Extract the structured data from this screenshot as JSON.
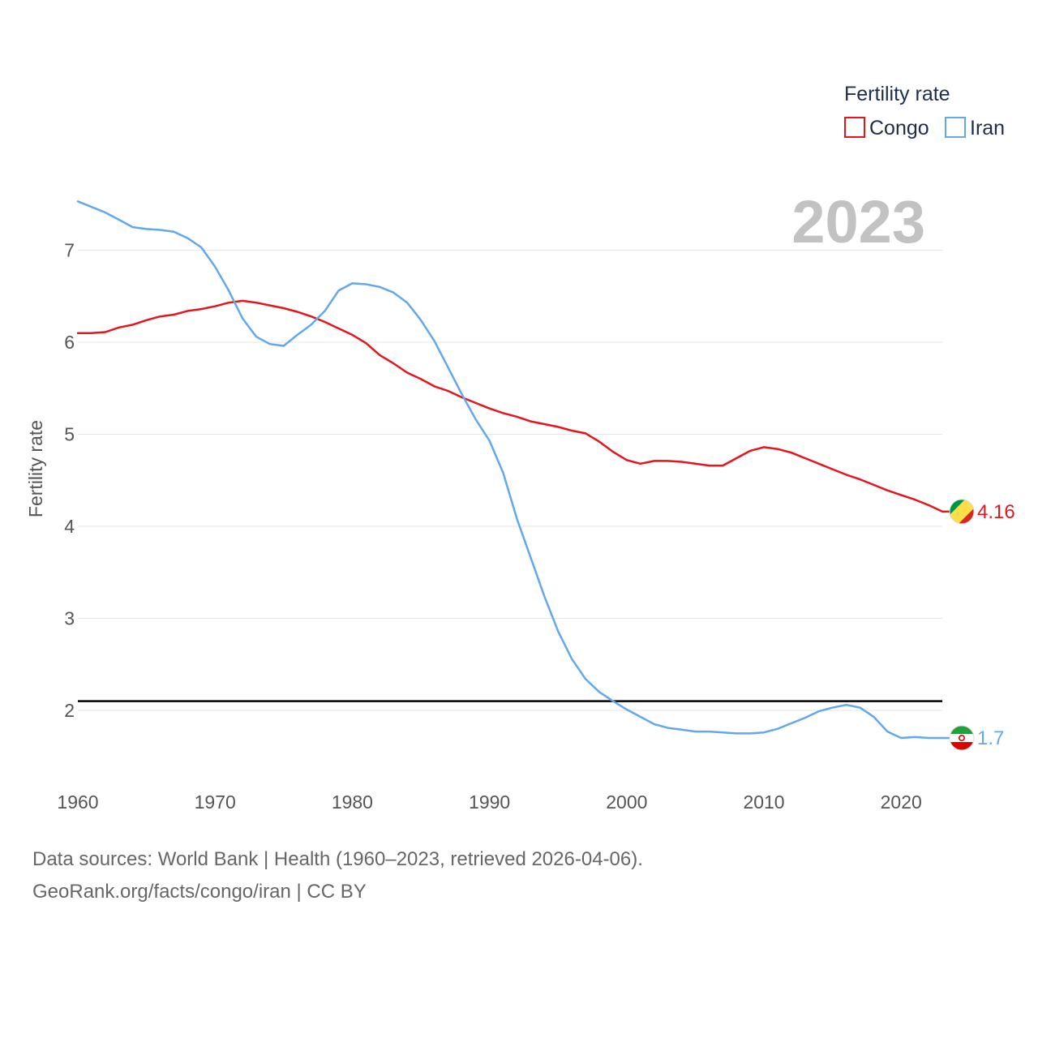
{
  "chart_data": {
    "type": "line",
    "title": "2023",
    "xlabel": "",
    "ylabel": "Fertility rate",
    "xlim": [
      1960,
      2023
    ],
    "ylim": [
      1.2,
      7.8
    ],
    "x_ticks": [
      1960,
      1970,
      1980,
      1990,
      2000,
      2010,
      2020
    ],
    "y_ticks": [
      2,
      3,
      4,
      5,
      6,
      7
    ],
    "grid": true,
    "legend": {
      "title": "Fertility rate",
      "placement": "top-right"
    },
    "reference_line": {
      "y": 2.1,
      "color": "#000000"
    },
    "x": [
      1960,
      1961,
      1962,
      1963,
      1964,
      1965,
      1966,
      1967,
      1968,
      1969,
      1970,
      1971,
      1972,
      1973,
      1974,
      1975,
      1976,
      1977,
      1978,
      1979,
      1980,
      1981,
      1982,
      1983,
      1984,
      1985,
      1986,
      1987,
      1988,
      1989,
      1990,
      1991,
      1992,
      1993,
      1994,
      1995,
      1996,
      1997,
      1998,
      1999,
      2000,
      2001,
      2002,
      2003,
      2004,
      2005,
      2006,
      2007,
      2008,
      2009,
      2010,
      2011,
      2012,
      2013,
      2014,
      2015,
      2016,
      2017,
      2018,
      2019,
      2020,
      2021,
      2022,
      2023
    ],
    "series": [
      {
        "name": "Congo",
        "color": "#e8141b",
        "end_label": "4.16",
        "flag": "congo-flag-icon",
        "values": [
          6.1,
          6.1,
          6.11,
          6.16,
          6.19,
          6.24,
          6.28,
          6.3,
          6.34,
          6.36,
          6.39,
          6.43,
          6.45,
          6.43,
          6.4,
          6.37,
          6.33,
          6.28,
          6.22,
          6.15,
          6.08,
          5.99,
          5.86,
          5.77,
          5.67,
          5.6,
          5.52,
          5.47,
          5.4,
          5.34,
          5.28,
          5.23,
          5.19,
          5.14,
          5.11,
          5.08,
          5.04,
          5.01,
          4.92,
          4.81,
          4.72,
          4.68,
          4.71,
          4.71,
          4.7,
          4.68,
          4.66,
          4.66,
          4.74,
          4.82,
          4.86,
          4.84,
          4.8,
          4.74,
          4.68,
          4.62,
          4.56,
          4.51,
          4.45,
          4.39,
          4.34,
          4.29,
          4.23,
          4.16
        ]
      },
      {
        "name": "Iran",
        "color": "#62a8ea",
        "end_label": "1.7",
        "flag": "iran-flag-icon",
        "values": [
          7.53,
          7.47,
          7.41,
          7.33,
          7.25,
          7.23,
          7.22,
          7.2,
          7.13,
          7.03,
          6.82,
          6.56,
          6.26,
          6.06,
          5.98,
          5.96,
          6.08,
          6.19,
          6.34,
          6.56,
          6.64,
          6.63,
          6.6,
          6.54,
          6.43,
          6.24,
          6.01,
          5.72,
          5.43,
          5.16,
          4.93,
          4.58,
          4.08,
          3.66,
          3.24,
          2.86,
          2.56,
          2.34,
          2.2,
          2.1,
          2.01,
          1.93,
          1.85,
          1.81,
          1.79,
          1.77,
          1.77,
          1.76,
          1.75,
          1.75,
          1.76,
          1.8,
          1.86,
          1.92,
          1.99,
          2.03,
          2.06,
          2.03,
          1.93,
          1.77,
          1.7,
          1.71,
          1.7,
          1.7
        ]
      }
    ]
  },
  "source": {
    "line1": "Data sources: World Bank | Health (1960–2023, retrieved 2026-04-06).",
    "line2": "GeoRank.org/facts/congo/iran | CC BY"
  }
}
